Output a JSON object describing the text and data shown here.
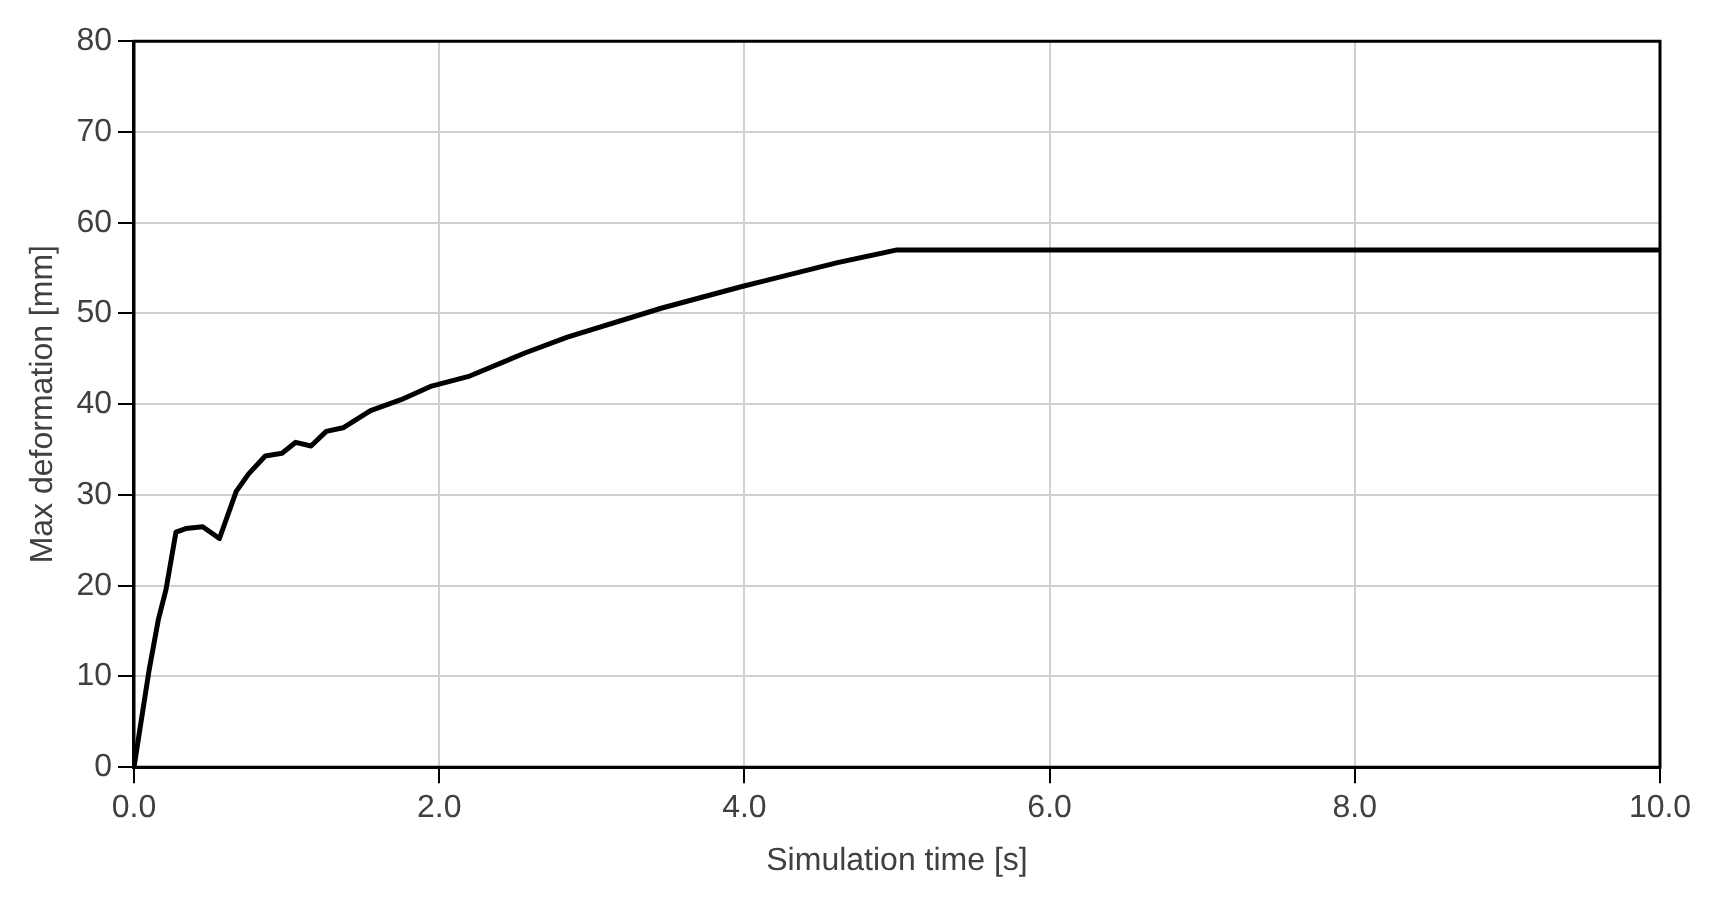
{
  "chart_data": {
    "type": "line",
    "xlabel": "Simulation time [s]",
    "ylabel": "Max deformation [mm]",
    "x": [
      0,
      0.1,
      0.16,
      0.21,
      0.275,
      0.34,
      0.45,
      0.56,
      0.67,
      0.75,
      0.86,
      0.97,
      1.06,
      1.16,
      1.26,
      1.37,
      1.55,
      1.75,
      1.95,
      2.2,
      2.57,
      2.84,
      3.46,
      3.99,
      4.61,
      5.0,
      10
    ],
    "series": [
      {
        "color": "#000000",
        "values": [
          0,
          10.8,
          16.3,
          19.6,
          25.9,
          26.3,
          26.5,
          25.2,
          30.4,
          32.3,
          34.3,
          34.6,
          35.8,
          35.4,
          37.0,
          37.4,
          39.3,
          40.5,
          42.0,
          43.1,
          45.7,
          47.4,
          50.6,
          53.0,
          55.6,
          57.0,
          57.0
        ]
      }
    ],
    "xlim": [
      0,
      10
    ],
    "xticks": [
      {
        "value": 0,
        "label": "0.0"
      },
      {
        "value": 2,
        "label": "2.0"
      },
      {
        "value": 4,
        "label": "4.0"
      },
      {
        "value": 6,
        "label": "6.0"
      },
      {
        "value": 8,
        "label": "8.0"
      },
      {
        "value": 10,
        "label": "10.0"
      }
    ],
    "ylim": [
      0,
      80
    ],
    "yticks": [
      0,
      10,
      20,
      30,
      40,
      50,
      60,
      70,
      80
    ],
    "grid": true,
    "legend": false,
    "marker": "none",
    "line_style": "solid"
  }
}
